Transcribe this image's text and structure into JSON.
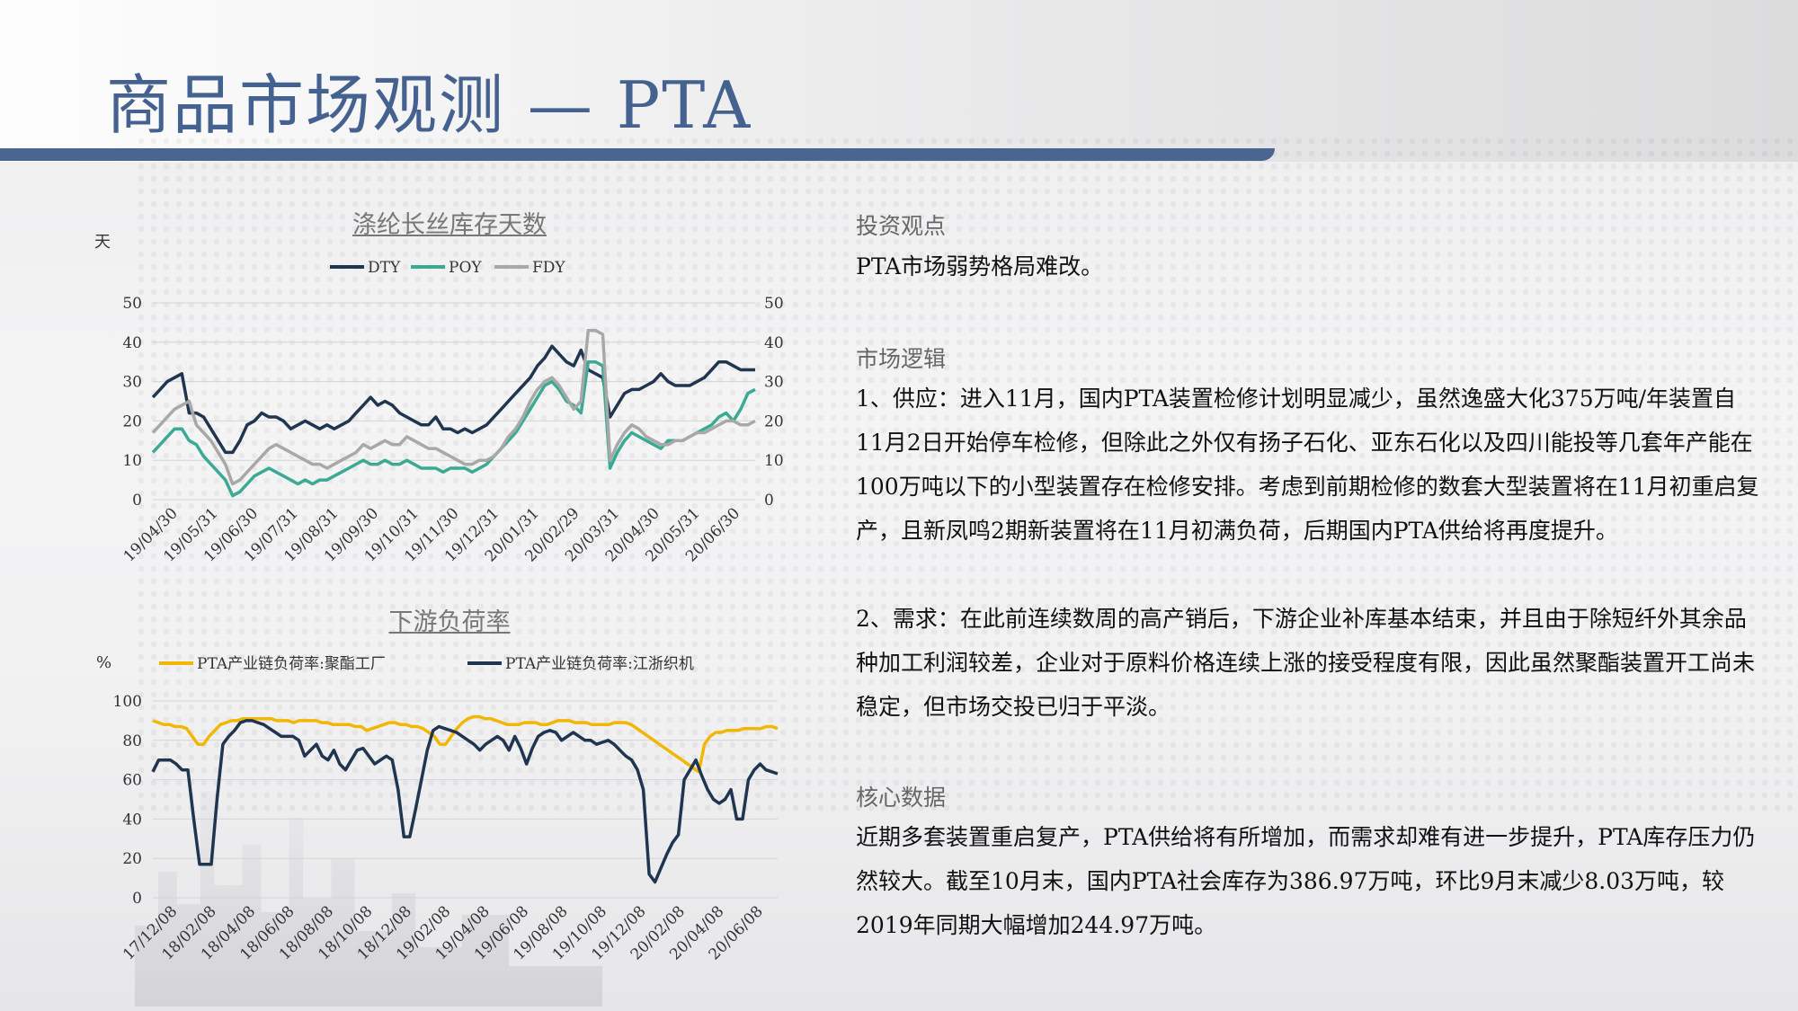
{
  "slide": {
    "title": "商品市场观测 — PTA"
  },
  "chart1": {
    "title": "涤纶长丝库存天数",
    "unit_label": "天",
    "legend": [
      "DTY",
      "POY",
      "FDY"
    ]
  },
  "chart2": {
    "title": "下游负荷率",
    "unit_label": "%",
    "legend": [
      "PTA产业链负荷率:聚酯工厂",
      "PTA产业链负荷率:江浙织机"
    ]
  },
  "text": {
    "h1": "投资观点",
    "p1": "PTA市场弱势格局难改。",
    "h2": "市场逻辑",
    "p2": "1、供应：进入11月，国内PTA装置检修计划明显减少，虽然逸盛大化375万吨/年装置自11月2日开始停车检修，但除此之外仅有扬子石化、亚东石化以及四川能投等几套年产能在100万吨以下的小型装置存在检修安排。考虑到前期检修的数套大型装置将在11月初重启复产，且新凤鸣2期新装置将在11月初满负荷，后期国内PTA供给将再度提升。",
    "p3": "2、需求：在此前连续数周的高产销后，下游企业补库基本结束，并且由于除短纤外其余品种加工利润较差，企业对于原料价格连续上涨的接受程度有限，因此虽然聚酯装置开工尚未稳定，但市场交投已归于平淡。",
    "h3": "核心数据",
    "p4": "近期多套装置重启复产，PTA供给将有所增加，而需求却难有进一步提升，PTA库存压力仍然较大。截至10月末，国内PTA社会库存为386.97万吨，环比9月末减少8.03万吨，较2019年同期大幅增加244.97万吨。"
  },
  "chart_data": [
    {
      "type": "line",
      "title": "涤纶长丝库存天数",
      "ylabel": "天",
      "ylim": [
        0,
        50
      ],
      "yticks": [
        0,
        10,
        20,
        30,
        40,
        50
      ],
      "xtick_labels": [
        "19/04/30",
        "19/05/31",
        "19/06/30",
        "19/07/31",
        "19/08/31",
        "19/09/30",
        "19/10/31",
        "19/11/30",
        "19/12/31",
        "20/01/31",
        "20/02/29",
        "20/03/31",
        "20/04/30",
        "20/05/31",
        "20/06/30"
      ],
      "legend_position": "top",
      "grid": true,
      "series": [
        {
          "name": "DTY",
          "color": "#1f3550",
          "values": [
            26,
            28,
            30,
            31,
            32,
            22,
            22,
            21,
            18,
            15,
            12,
            12,
            15,
            19,
            20,
            22,
            21,
            21,
            20,
            18,
            19,
            20,
            19,
            18,
            19,
            18,
            19,
            20,
            22,
            24,
            26,
            24,
            25,
            24,
            22,
            21,
            20,
            19,
            19,
            21,
            18,
            18,
            17,
            18,
            17,
            18,
            19,
            21,
            23,
            25,
            27,
            29,
            31,
            34,
            36,
            39,
            37,
            35,
            34,
            38,
            33,
            32,
            31,
            21,
            24,
            27,
            28,
            28,
            29,
            30,
            32,
            30,
            29,
            29,
            29,
            30,
            31,
            33,
            35,
            35,
            34,
            33,
            33,
            33
          ]
        },
        {
          "name": "POY",
          "color": "#3aaa94",
          "values": [
            12,
            14,
            16,
            18,
            18,
            15,
            14,
            11,
            9,
            7,
            5,
            1,
            2,
            4,
            6,
            7,
            8,
            7,
            6,
            5,
            4,
            5,
            4,
            5,
            5,
            6,
            7,
            8,
            9,
            10,
            9,
            9,
            10,
            9,
            9,
            10,
            9,
            8,
            8,
            8,
            7,
            8,
            8,
            8,
            7,
            8,
            9,
            11,
            13,
            15,
            17,
            20,
            23,
            26,
            29,
            30,
            28,
            25,
            24,
            22,
            35,
            35,
            34,
            8,
            12,
            15,
            17,
            16,
            15,
            14,
            13,
            15,
            15,
            15,
            16,
            17,
            18,
            19,
            21,
            22,
            20,
            23,
            27,
            28
          ]
        },
        {
          "name": "FDY",
          "color": "#a8a8a8",
          "values": [
            17,
            19,
            21,
            23,
            24,
            25,
            19,
            17,
            15,
            12,
            9,
            4,
            5,
            7,
            9,
            11,
            13,
            14,
            13,
            12,
            11,
            10,
            9,
            9,
            8,
            9,
            10,
            11,
            12,
            14,
            13,
            14,
            15,
            14,
            14,
            16,
            15,
            14,
            13,
            13,
            12,
            11,
            10,
            9,
            9,
            10,
            10,
            11,
            13,
            16,
            18,
            21,
            25,
            28,
            30,
            31,
            29,
            26,
            23,
            25,
            43,
            43,
            42,
            10,
            14,
            17,
            19,
            18,
            16,
            15,
            14,
            14,
            15,
            15,
            16,
            17,
            17,
            18,
            19,
            20,
            20,
            19,
            19,
            20
          ]
        }
      ]
    },
    {
      "type": "line",
      "title": "下游负荷率",
      "ylabel": "%",
      "ylim": [
        0,
        100
      ],
      "yticks": [
        0,
        20,
        40,
        60,
        80,
        100
      ],
      "xtick_labels": [
        "17/12/08",
        "18/02/08",
        "18/04/08",
        "18/06/08",
        "18/08/08",
        "18/10/08",
        "18/12/08",
        "19/02/08",
        "19/04/08",
        "19/06/08",
        "19/08/08",
        "19/10/08",
        "19/12/08",
        "20/02/08",
        "20/04/08",
        "20/06/08"
      ],
      "legend_position": "top",
      "grid": true,
      "series": [
        {
          "name": "PTA产业链负荷率:聚酯工厂",
          "color": "#f2b705",
          "values": [
            90,
            89,
            88,
            88,
            87,
            87,
            86,
            82,
            78,
            78,
            82,
            85,
            88,
            89,
            90,
            90,
            91,
            91,
            91,
            91,
            91,
            91,
            90,
            90,
            90,
            89,
            90,
            90,
            90,
            90,
            89,
            89,
            88,
            88,
            88,
            88,
            87,
            87,
            85,
            86,
            87,
            88,
            89,
            89,
            88,
            88,
            87,
            87,
            86,
            84,
            82,
            78,
            78,
            82,
            86,
            89,
            91,
            92,
            92,
            91,
            91,
            90,
            89,
            88,
            88,
            88,
            89,
            89,
            89,
            88,
            88,
            89,
            90,
            90,
            90,
            89,
            89,
            89,
            88,
            88,
            88,
            88,
            89,
            89,
            89,
            88,
            86,
            84,
            82,
            80,
            78,
            76,
            74,
            72,
            70,
            68,
            66,
            64,
            78,
            82,
            84,
            84,
            85,
            85,
            85,
            86,
            86,
            86,
            86,
            87,
            87,
            86
          ]
        },
        {
          "name": "PTA产业链负荷率:江浙织机",
          "color": "#1f3550",
          "values": [
            64,
            70,
            70,
            70,
            68,
            65,
            65,
            40,
            17,
            17,
            17,
            50,
            78,
            82,
            85,
            89,
            90,
            90,
            89,
            88,
            86,
            84,
            82,
            82,
            82,
            80,
            72,
            75,
            78,
            72,
            70,
            75,
            68,
            65,
            70,
            75,
            76,
            72,
            68,
            70,
            72,
            70,
            55,
            31,
            31,
            45,
            60,
            75,
            85,
            87,
            86,
            85,
            84,
            82,
            80,
            78,
            75,
            78,
            80,
            82,
            80,
            75,
            82,
            76,
            68,
            76,
            82,
            84,
            85,
            84,
            80,
            82,
            84,
            82,
            80,
            80,
            78,
            79,
            80,
            78,
            75,
            72,
            70,
            65,
            55,
            12,
            8,
            15,
            22,
            28,
            32,
            60,
            65,
            70,
            62,
            55,
            50,
            48,
            50,
            55,
            40,
            40,
            60,
            65,
            68,
            65,
            64,
            63
          ]
        }
      ]
    }
  ]
}
